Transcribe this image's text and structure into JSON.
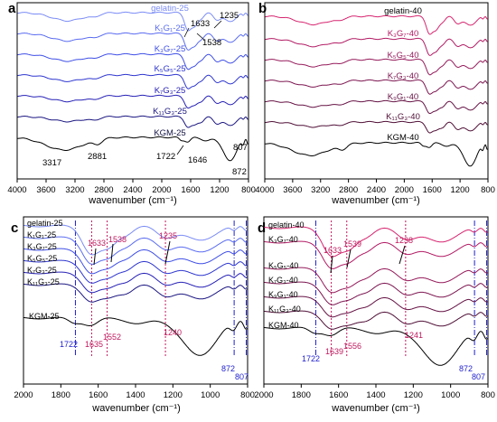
{
  "figure": {
    "colors": {
      "axis": "#000000",
      "panel_a": [
        "#7b8cf5",
        "#5a6cf0",
        "#3f4fe6",
        "#2e36cf",
        "#2620b6",
        "#1a1580",
        "#121245",
        "#000000"
      ],
      "panel_b": [
        "#d6256f",
        "#b21b64",
        "#951a5a",
        "#7c1650",
        "#651244",
        "#4f0f36",
        "#000000"
      ],
      "marker_blue": "#1f1fcf",
      "marker_red": "#c0185c"
    }
  },
  "chart_data": [
    {
      "panel": "a",
      "type": "line",
      "xlabel": "wavenumber (cm⁻¹)",
      "xlim": [
        4000,
        800
      ],
      "xticks": [
        4000,
        3600,
        3200,
        2800,
        2400,
        2000,
        1600,
        1200,
        800
      ],
      "series": [
        {
          "name": "gelatin-25"
        },
        {
          "name": "K₁G₁-25"
        },
        {
          "name": "K₃G₇-25"
        },
        {
          "name": "K₅G₅-25"
        },
        {
          "name": "K₇G₃-25"
        },
        {
          "name": "K₁₁G₃-25"
        },
        {
          "name": "KGM-25"
        }
      ],
      "annotations": [
        "1633",
        "1235",
        "1538",
        "3317",
        "2881",
        "1722",
        "1646",
        "807",
        "872"
      ]
    },
    {
      "panel": "b",
      "type": "line",
      "xlabel": "wavenumber (cm⁻¹)",
      "xlim": [
        4000,
        800
      ],
      "xticks": [
        4000,
        3600,
        3200,
        2800,
        2400,
        2000,
        1600,
        1200,
        800
      ],
      "series": [
        {
          "name": "gelatin-40"
        },
        {
          "name": "K₃G₇-40"
        },
        {
          "name": "K₅G₅-40"
        },
        {
          "name": "K₇G₃-40"
        },
        {
          "name": "K₉G₁-40"
        },
        {
          "name": "K₁₁G₃-40"
        },
        {
          "name": "KGM-40"
        }
      ]
    },
    {
      "panel": "c",
      "type": "line",
      "xlabel": "wavenumber (cm⁻¹)",
      "xlim": [
        2000,
        800
      ],
      "xticks": [
        2000,
        1800,
        1600,
        1400,
        1200,
        1000,
        800
      ],
      "series": [
        {
          "name": "gelatin-25"
        },
        {
          "name": "K₁G₁-25"
        },
        {
          "name": "K₃G₇-25"
        },
        {
          "name": "K₅G₅-25"
        },
        {
          "name": "K₇G₃-25"
        },
        {
          "name": "K₁₁G₃-25"
        },
        {
          "name": "KGM-25"
        }
      ],
      "annotations": [
        "1633",
        "1538",
        "1235",
        "1722",
        "1635",
        "1552",
        "1240",
        "872",
        "807"
      ],
      "vlines": [
        1722,
        1635,
        1552,
        1240,
        872,
        807
      ]
    },
    {
      "panel": "d",
      "type": "line",
      "xlabel": "wavenumber (cm⁻¹)",
      "xlim": [
        2000,
        800
      ],
      "xticks": [
        2000,
        1800,
        1600,
        1400,
        1200,
        1000,
        800
      ],
      "series": [
        {
          "name": "gelatin-40"
        },
        {
          "name": "K₃G₇-40"
        },
        {
          "name": "K₅G₅-40"
        },
        {
          "name": "K₇G₃-40"
        },
        {
          "name": "K₉G₁-40"
        },
        {
          "name": "K₁₁G₃-40"
        },
        {
          "name": "KGM-40"
        }
      ],
      "annotations": [
        "1633",
        "1539",
        "1238",
        "1722",
        "1639",
        "1556",
        "1241",
        "872",
        "807"
      ],
      "vlines": [
        1722,
        1639,
        1556,
        1241,
        872,
        807
      ]
    }
  ]
}
